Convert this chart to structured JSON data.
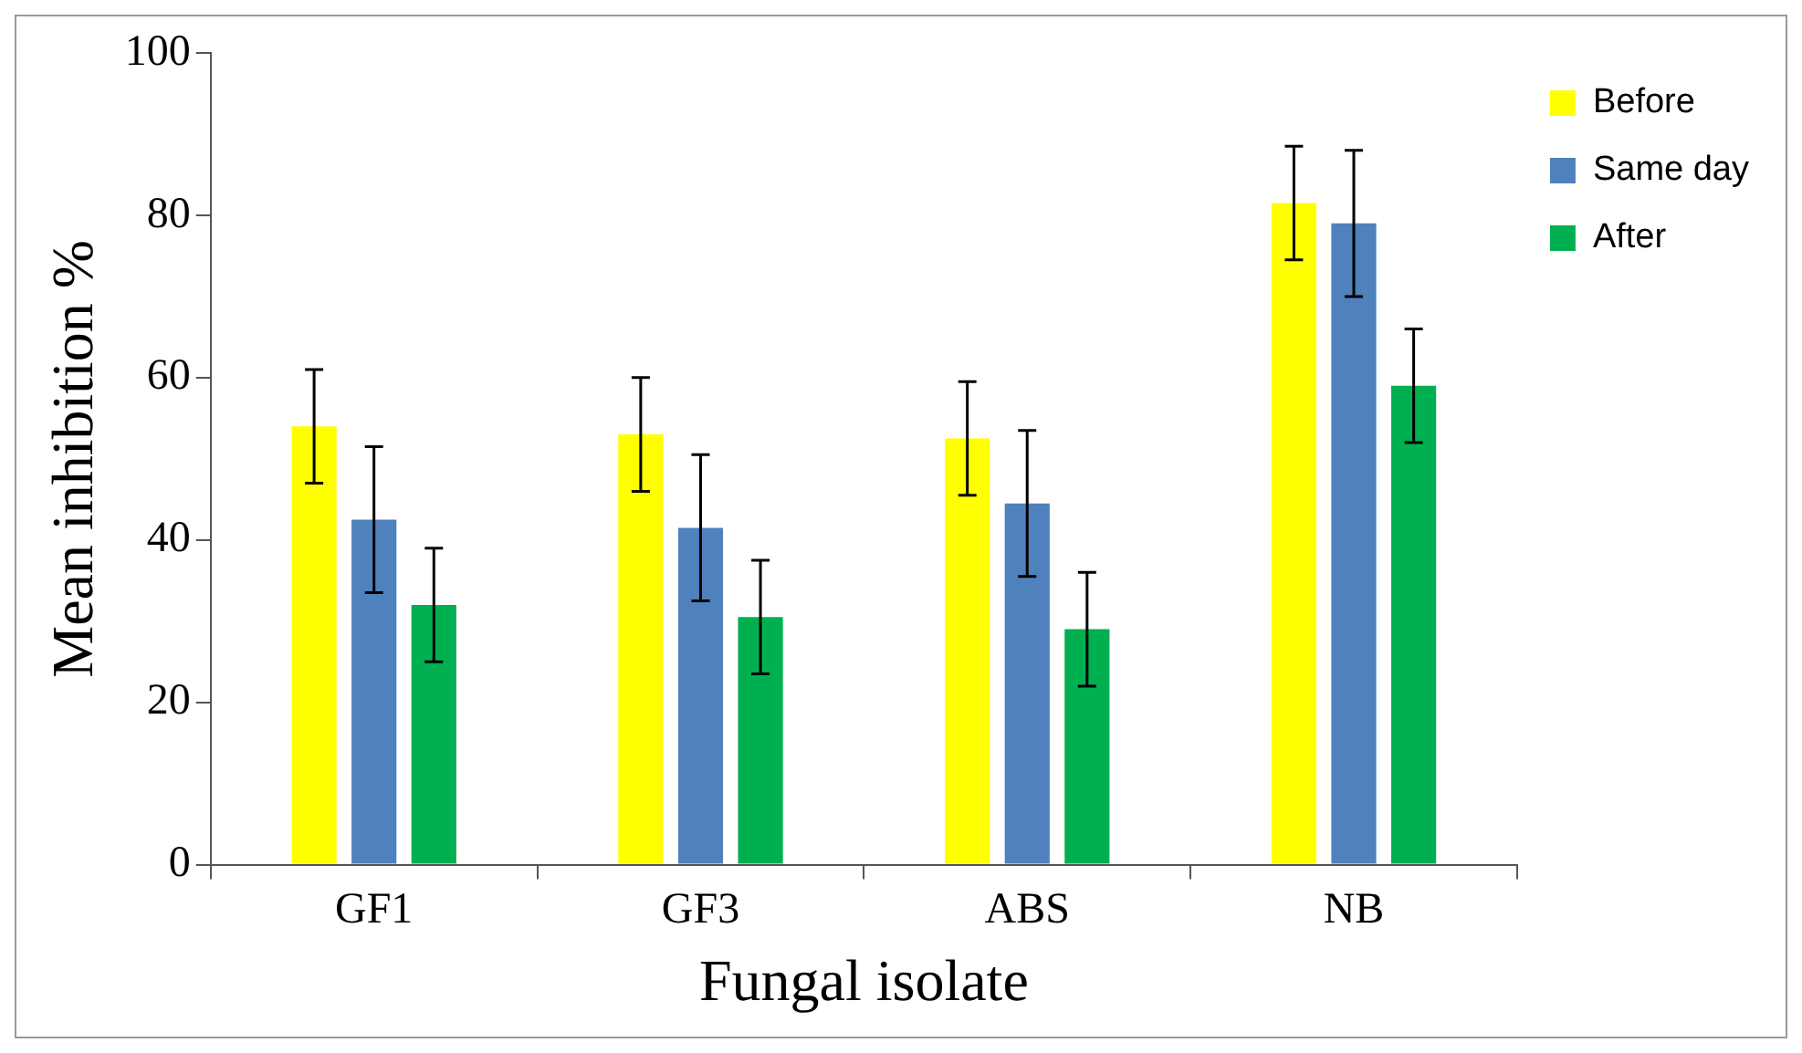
{
  "chart_data": {
    "type": "bar",
    "xlabel": "Fungal isolate",
    "ylabel": "Mean inhibition %",
    "categories": [
      "GF1",
      "GF3",
      "ABS",
      "NB"
    ],
    "series": [
      {
        "name": "Before",
        "color": "#ffff00",
        "values": [
          54,
          53,
          52.5,
          81.5
        ],
        "errors": [
          7,
          7,
          7,
          7
        ]
      },
      {
        "name": "Same day",
        "color": "#4f81bd",
        "values": [
          42.5,
          41.5,
          44.5,
          79
        ],
        "errors": [
          9,
          9,
          9,
          9
        ]
      },
      {
        "name": "After",
        "color": "#00b050",
        "values": [
          32,
          30.5,
          29,
          59
        ],
        "errors": [
          7,
          7,
          7,
          7
        ]
      }
    ],
    "ylim": [
      0,
      100
    ],
    "yticks": [
      0,
      20,
      40,
      60,
      80,
      100
    ],
    "grid": false,
    "legend": "top right"
  }
}
